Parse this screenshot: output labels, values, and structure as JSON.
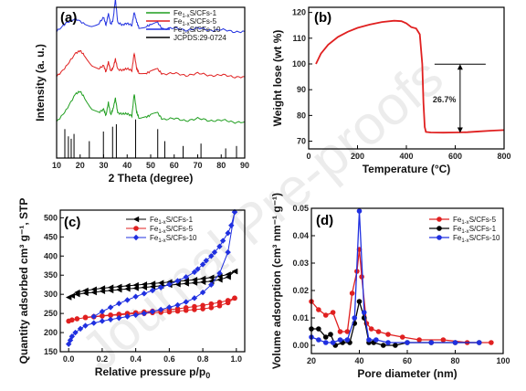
{
  "watermark": "Journal Pre-proofs",
  "chart_data": [
    {
      "panel": "(a)",
      "type": "line",
      "xlabel": "2 Theta (degree)",
      "ylabel": "Intensity (a. u.)",
      "xlim": [
        10,
        90
      ],
      "xticks": [
        10,
        20,
        30,
        40,
        50,
        60,
        70,
        80,
        90
      ],
      "legend": [
        "Fe1-xS/CFs-1",
        "Fe1-xS/CFs-5",
        "Fe1-xS/CFs-10",
        "JCPDS:29-0724"
      ],
      "legend_position": "top-right",
      "colors": [
        "#1f9e1f",
        "#e02020",
        "#2030e0",
        "#000000"
      ],
      "series": [
        {
          "name": "Fe1-xS/CFs-10",
          "color": "#2030e0",
          "baseline": 0.84,
          "x": [
            10,
            14,
            18,
            22,
            25,
            28,
            30,
            31,
            32,
            33,
            34,
            35,
            36,
            38,
            40,
            42,
            43,
            44,
            45,
            48,
            50,
            53,
            55,
            60,
            65,
            70,
            75,
            80,
            85,
            90
          ],
          "y": [
            0.0,
            0.06,
            0.08,
            0.05,
            0.04,
            0.05,
            0.09,
            0.04,
            0.12,
            0.05,
            0.08,
            0.22,
            0.06,
            0.04,
            0.05,
            0.04,
            0.13,
            0.07,
            0.03,
            0.03,
            0.04,
            0.06,
            0.02,
            0.02,
            0.01,
            0.02,
            0.01,
            0.01,
            0.0,
            0.0
          ]
        },
        {
          "name": "Fe1-xS/CFs-5",
          "color": "#e02020",
          "baseline": 0.54,
          "x": [
            10,
            14,
            18,
            20,
            22,
            25,
            28,
            30,
            31,
            32,
            33,
            34,
            35,
            36,
            38,
            40,
            42,
            43,
            44,
            45,
            48,
            50,
            53,
            55,
            60,
            65,
            70,
            75,
            80,
            85,
            90
          ],
          "y": [
            0.0,
            0.07,
            0.15,
            0.17,
            0.14,
            0.08,
            0.05,
            0.07,
            0.03,
            0.1,
            0.04,
            0.06,
            0.12,
            0.05,
            0.04,
            0.05,
            0.04,
            0.16,
            0.06,
            0.03,
            0.02,
            0.03,
            0.05,
            0.02,
            0.02,
            0.01,
            0.02,
            0.01,
            0.01,
            0.0,
            0.0
          ]
        },
        {
          "name": "Fe1-xS/CFs-1",
          "color": "#1f9e1f",
          "baseline": 0.24,
          "x": [
            10,
            14,
            18,
            20,
            22,
            25,
            28,
            30,
            31,
            32,
            33,
            34,
            35,
            36,
            38,
            40,
            42,
            43,
            44,
            45,
            48,
            50,
            53,
            55,
            60,
            65,
            70,
            75,
            80,
            85,
            90
          ],
          "y": [
            0.0,
            0.08,
            0.18,
            0.2,
            0.16,
            0.09,
            0.06,
            0.08,
            0.04,
            0.13,
            0.05,
            0.09,
            0.16,
            0.06,
            0.05,
            0.05,
            0.04,
            0.19,
            0.07,
            0.03,
            0.03,
            0.04,
            0.06,
            0.02,
            0.02,
            0.01,
            0.02,
            0.01,
            0.01,
            0.0,
            0.0
          ]
        }
      ],
      "reference_lines": {
        "name": "JCPDS:29-0724",
        "positions": [
          13.5,
          15.0,
          16.2,
          17.4,
          23.9,
          29.9,
          33.8,
          35.4,
          43.6,
          53.0,
          56.0,
          63.8,
          71.4,
          81.9,
          86.5
        ],
        "heights": [
          0.12,
          0.09,
          0.08,
          0.1,
          0.07,
          0.11,
          0.13,
          0.14,
          0.16,
          0.12,
          0.07,
          0.05,
          0.06,
          0.04,
          0.05
        ]
      }
    },
    {
      "panel": "(b)",
      "type": "line",
      "xlabel": "Temperature (°C)",
      "ylabel": "Weight lose (wt %)",
      "xlim": [
        0,
        800
      ],
      "ylim": [
        67,
        122
      ],
      "xticks": [
        0,
        200,
        400,
        600,
        800
      ],
      "yticks": [
        70,
        80,
        90,
        100,
        110,
        120
      ],
      "series": [
        {
          "name": "",
          "color": "#e02020",
          "x": [
            30,
            50,
            80,
            120,
            160,
            200,
            250,
            300,
            350,
            380,
            400,
            420,
            440,
            455,
            465,
            470,
            475,
            480,
            500,
            550,
            600,
            650,
            700,
            750,
            800
          ],
          "y": [
            100.0,
            104.0,
            107.5,
            110.5,
            112.5,
            114.0,
            115.3,
            116.3,
            116.8,
            116.6,
            115.8,
            114.3,
            113.8,
            111.5,
            100.0,
            85.0,
            75.5,
            73.6,
            73.4,
            73.3,
            73.4,
            73.5,
            73.8,
            74.1,
            74.3
          ]
        }
      ],
      "annotation": {
        "text": "26.7%",
        "from_y": 99.9,
        "to_y": 73.2,
        "x": 620
      }
    },
    {
      "panel": "(c)",
      "type": "line",
      "xlabel": "Relative pressure p/p0",
      "ylabel": "Quantity adsorbed cm³ g⁻¹, STP",
      "xlim": [
        -0.05,
        1.05
      ],
      "ylim": [
        150,
        520
      ],
      "xticks": [
        0.0,
        0.2,
        0.4,
        0.6,
        0.8,
        1.0
      ],
      "yticks": [
        150,
        200,
        250,
        300,
        350,
        400,
        450,
        500
      ],
      "legend": [
        "Fe1-xS/CFs-1",
        "Fe1-xS/CFs-5",
        "Fe1-xS/CFs-10"
      ],
      "legend_position": "top-left",
      "series": [
        {
          "name": "Fe1-xS/CFs-1",
          "color": "#000000",
          "marker": "triangle-left",
          "adsorption": {
            "x": [
              0.0,
              0.02,
              0.05,
              0.1,
              0.15,
              0.2,
              0.25,
              0.3,
              0.35,
              0.4,
              0.45,
              0.5,
              0.55,
              0.6,
              0.65,
              0.7,
              0.75,
              0.8,
              0.85,
              0.9,
              0.95,
              0.99
            ],
            "y": [
              292,
              296,
              300,
              303,
              305,
              308,
              310,
              312,
              314,
              316,
              318,
              320,
              322,
              324,
              326,
              328,
              330,
              332,
              334,
              338,
              345,
              360
            ]
          },
          "desorption": {
            "x": [
              0.99,
              0.95,
              0.9,
              0.85,
              0.8,
              0.75,
              0.7,
              0.65,
              0.6,
              0.55,
              0.5,
              0.45,
              0.4,
              0.35,
              0.3,
              0.25,
              0.2,
              0.15,
              0.1,
              0.05
            ],
            "y": [
              360,
              352,
              347,
              344,
              341,
              338,
              336,
              334,
              332,
              330,
              328,
              326,
              324,
              322,
              320,
              318,
              316,
              313,
              310,
              305
            ]
          }
        },
        {
          "name": "Fe1-xS/CFs-5",
          "color": "#e02020",
          "marker": "circle",
          "adsorption": {
            "x": [
              0.0,
              0.02,
              0.05,
              0.1,
              0.15,
              0.2,
              0.25,
              0.3,
              0.35,
              0.4,
              0.45,
              0.5,
              0.55,
              0.6,
              0.65,
              0.7,
              0.75,
              0.8,
              0.85,
              0.9,
              0.95,
              0.99
            ],
            "y": [
              230,
              233,
              236,
              239,
              241,
              243,
              245,
              246,
              248,
              249,
              250,
              252,
              253,
              254,
              256,
              258,
              260,
              262,
              265,
              270,
              278,
              290
            ]
          },
          "desorption": {
            "x": [
              0.99,
              0.95,
              0.9,
              0.85,
              0.8,
              0.75,
              0.7,
              0.65,
              0.6,
              0.55,
              0.5,
              0.45,
              0.4,
              0.35,
              0.3,
              0.25,
              0.2,
              0.15,
              0.1
            ],
            "y": [
              290,
              284,
              279,
              275,
              271,
              268,
              265,
              262,
              260,
              258,
              256,
              254,
              252,
              250,
              248,
              246,
              244,
              242,
              240
            ]
          }
        },
        {
          "name": "Fe1-xS/CFs-10",
          "color": "#2030e0",
          "marker": "diamond",
          "adsorption": {
            "x": [
              0.0,
              0.01,
              0.02,
              0.04,
              0.07,
              0.1,
              0.15,
              0.2,
              0.25,
              0.3,
              0.35,
              0.4,
              0.45,
              0.5,
              0.55,
              0.6,
              0.65,
              0.7,
              0.75,
              0.8,
              0.85,
              0.9,
              0.95,
              0.99
            ],
            "y": [
              170,
              180,
              190,
              200,
              210,
              218,
              225,
              230,
              234,
              238,
              242,
              246,
              250,
              255,
              260,
              266,
              272,
              280,
              290,
              305,
              325,
              355,
              410,
              515
            ]
          },
          "desorption": {
            "x": [
              0.99,
              0.97,
              0.95,
              0.92,
              0.9,
              0.87,
              0.85,
              0.82,
              0.8,
              0.77,
              0.75,
              0.7,
              0.65,
              0.6,
              0.55,
              0.5,
              0.45,
              0.4,
              0.35,
              0.3,
              0.25,
              0.2,
              0.15
            ],
            "y": [
              515,
              480,
              460,
              440,
              425,
              410,
              400,
              388,
              378,
              366,
              358,
              345,
              335,
              326,
              318,
              310,
              302,
              294,
              285,
              276,
              266,
              255,
              242
            ]
          }
        }
      ]
    },
    {
      "panel": "(d)",
      "type": "line",
      "xlabel": "Pore diameter (nm)",
      "ylabel": "Volume adsorption (cm³ nm⁻¹ g⁻¹)",
      "xlim": [
        20,
        100
      ],
      "ylim": [
        -0.003,
        0.05
      ],
      "xticks": [
        20,
        40,
        60,
        80,
        100
      ],
      "yticks": [
        0.0,
        0.01,
        0.02,
        0.03,
        0.04,
        0.05
      ],
      "legend": [
        "Fe1-xS/CFs-5",
        "Fe1-xS/CFs-1",
        "Fe1-xS/CFs-10"
      ],
      "legend_position": "top-right",
      "series": [
        {
          "name": "Fe1-xS/CFs-5",
          "color": "#e02020",
          "marker": "circle",
          "x": [
            20,
            23,
            26,
            29,
            32,
            35,
            37,
            39,
            40,
            41,
            43,
            45,
            48,
            52,
            58,
            65,
            75,
            85,
            95
          ],
          "y": [
            0.016,
            0.013,
            0.011,
            0.012,
            0.005,
            0.005,
            0.019,
            0.027,
            0.035,
            0.025,
            0.008,
            0.006,
            0.005,
            0.004,
            0.003,
            0.002,
            0.002,
            0.001,
            0.001
          ]
        },
        {
          "name": "Fe1-xS/CFs-1",
          "color": "#000000",
          "marker": "circle",
          "x": [
            20,
            23,
            26,
            28,
            30,
            33,
            36,
            38,
            40,
            42,
            44,
            46,
            50,
            55,
            60,
            70,
            80,
            90
          ],
          "y": [
            0.006,
            0.006,
            0.003,
            0.004,
            0.0,
            0.001,
            0.001,
            0.008,
            0.016,
            0.01,
            0.001,
            0.001,
            0.0,
            0.0,
            0.001,
            0.001,
            0.001,
            0.001
          ]
        },
        {
          "name": "Fe1-xS/CFs-10",
          "color": "#2030e0",
          "marker": "circle",
          "x": [
            20,
            23,
            26,
            29,
            32,
            35,
            38,
            40,
            42,
            44,
            47,
            52,
            60,
            70,
            80,
            90
          ],
          "y": [
            0.003,
            0.002,
            0.001,
            0.001,
            0.002,
            0.002,
            0.01,
            0.049,
            0.012,
            0.002,
            0.002,
            0.001,
            0.001,
            0.001,
            0.001,
            0.001
          ]
        }
      ]
    }
  ]
}
